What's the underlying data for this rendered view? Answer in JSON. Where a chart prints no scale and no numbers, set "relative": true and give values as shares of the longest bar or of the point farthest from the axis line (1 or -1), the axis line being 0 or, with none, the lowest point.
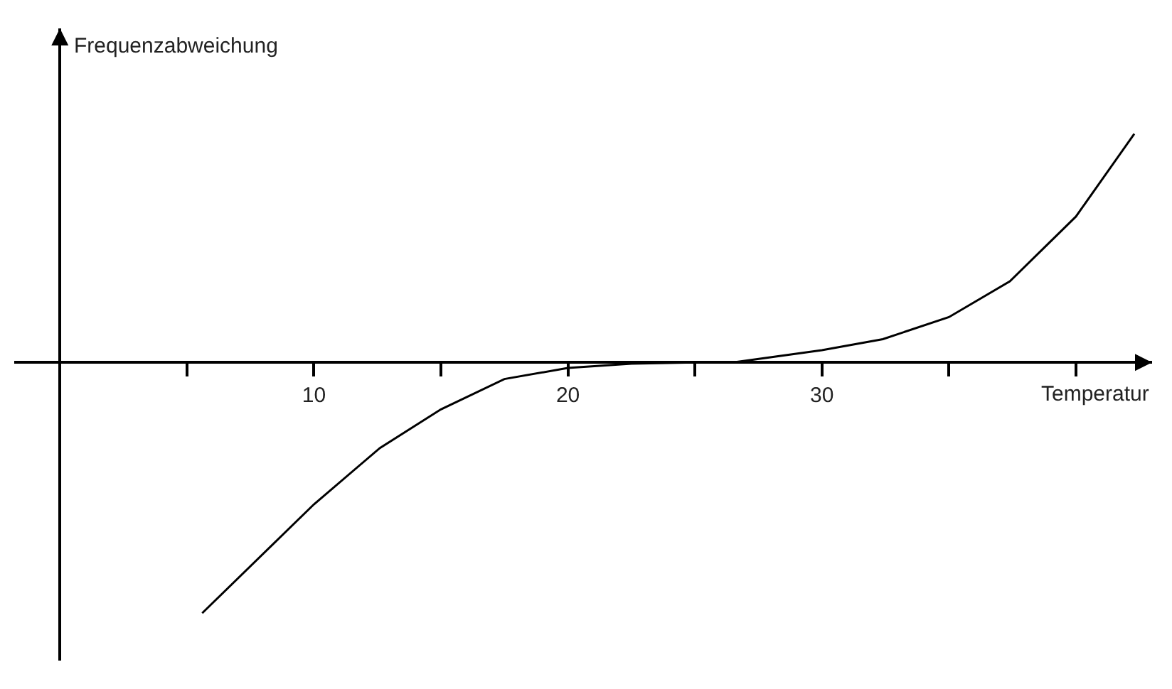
{
  "chart_data": {
    "type": "line",
    "relative": true,
    "xlabel": "Temperatur",
    "ylabel": "Frequenzabweichung",
    "x": [
      5.6,
      10,
      12.6,
      15,
      17.5,
      20,
      22.5,
      25,
      26.5,
      30,
      32.4,
      35,
      37.4,
      40,
      42.3
    ],
    "series": [
      {
        "color": "#000000",
        "values": [
          -1,
          -0.566,
          -0.341,
          -0.187,
          -0.066,
          -0.022,
          -0.005,
          0,
          0,
          0.049,
          0.093,
          0.181,
          0.324,
          0.582,
          0.912
        ]
      }
    ],
    "xlim": [
      -1.8,
      43
    ],
    "xticks": [
      {
        "value": 5,
        "label": null
      },
      10,
      {
        "value": 15,
        "label": null
      },
      20,
      {
        "value": 25,
        "label": null
      },
      30,
      {
        "value": 35,
        "label": null
      },
      {
        "value": 40,
        "label": null
      }
    ],
    "marker": "none",
    "line_style": "solid"
  }
}
